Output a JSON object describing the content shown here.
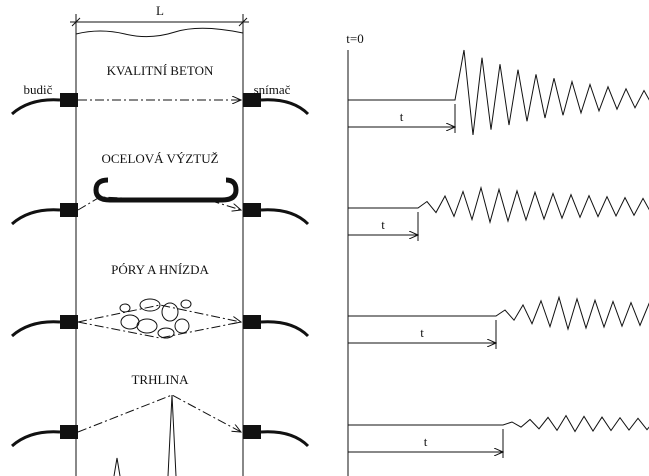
{
  "dimension_label": "L",
  "transmitter": "budič",
  "receiver": "snímač",
  "cases": [
    "KVALITNÍ BETON",
    "OCELOVÁ VÝZTUŽ",
    "PÓRY A HNÍZDA",
    "TRHLINA"
  ],
  "time_zero": "t=0",
  "time_labels": [
    "t",
    "t",
    "t",
    "t"
  ]
}
